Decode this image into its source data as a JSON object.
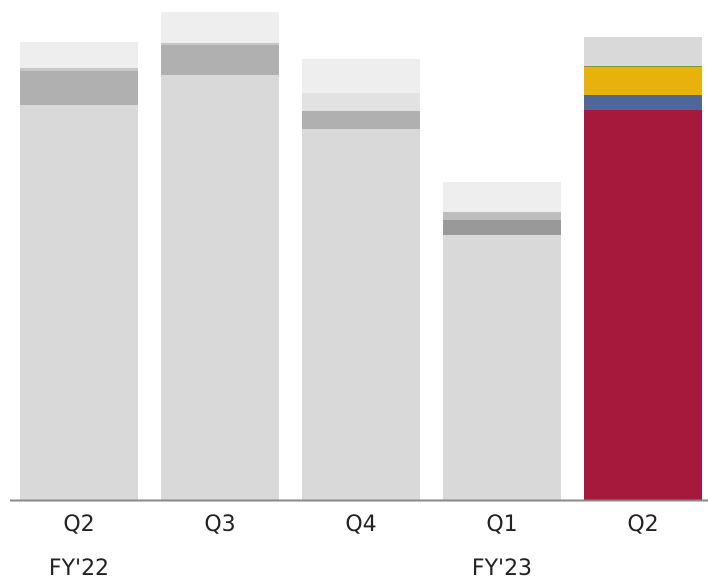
{
  "chart_data": {
    "type": "stacked_bar",
    "categories": [
      "Q2",
      "Q3",
      "Q4",
      "Q1",
      "Q2"
    ],
    "group_labels": [
      "FY'22",
      null,
      null,
      "FY'23",
      null
    ],
    "ylim": [
      0,
      500
    ],
    "series": [
      {
        "values": [
          395,
          425,
          371,
          265,
          390
        ],
        "colors": [
          "#d9d9d9",
          "#d9d9d9",
          "#d9d9d9",
          "#d9d9d9",
          "#a6193c"
        ]
      },
      {
        "values": [
          34,
          30,
          18,
          15,
          15
        ],
        "colors": [
          "#b0b0b0",
          "#b0b0b0",
          "#b0b0b0",
          "#999999",
          "#4f6796"
        ]
      },
      {
        "values": [
          3,
          2,
          18,
          8,
          28
        ],
        "colors": [
          "#c6c6c6",
          "#c6c6c6",
          "#e2e2e2",
          "#bdbdbd",
          "#e8b10c"
        ]
      },
      {
        "values": [
          0,
          0,
          0,
          0,
          1
        ],
        "colors": [
          "#7a9a4a",
          "#7a9a4a",
          "#7a9a4a",
          "#7a9a4a",
          "#7a9a4a"
        ]
      },
      {
        "values": [
          26,
          31,
          34,
          30,
          29
        ],
        "colors": [
          "#eeeeee",
          "#eeeeee",
          "#eeeeee",
          "#eeeeee",
          "#d9d9d9"
        ]
      }
    ]
  }
}
